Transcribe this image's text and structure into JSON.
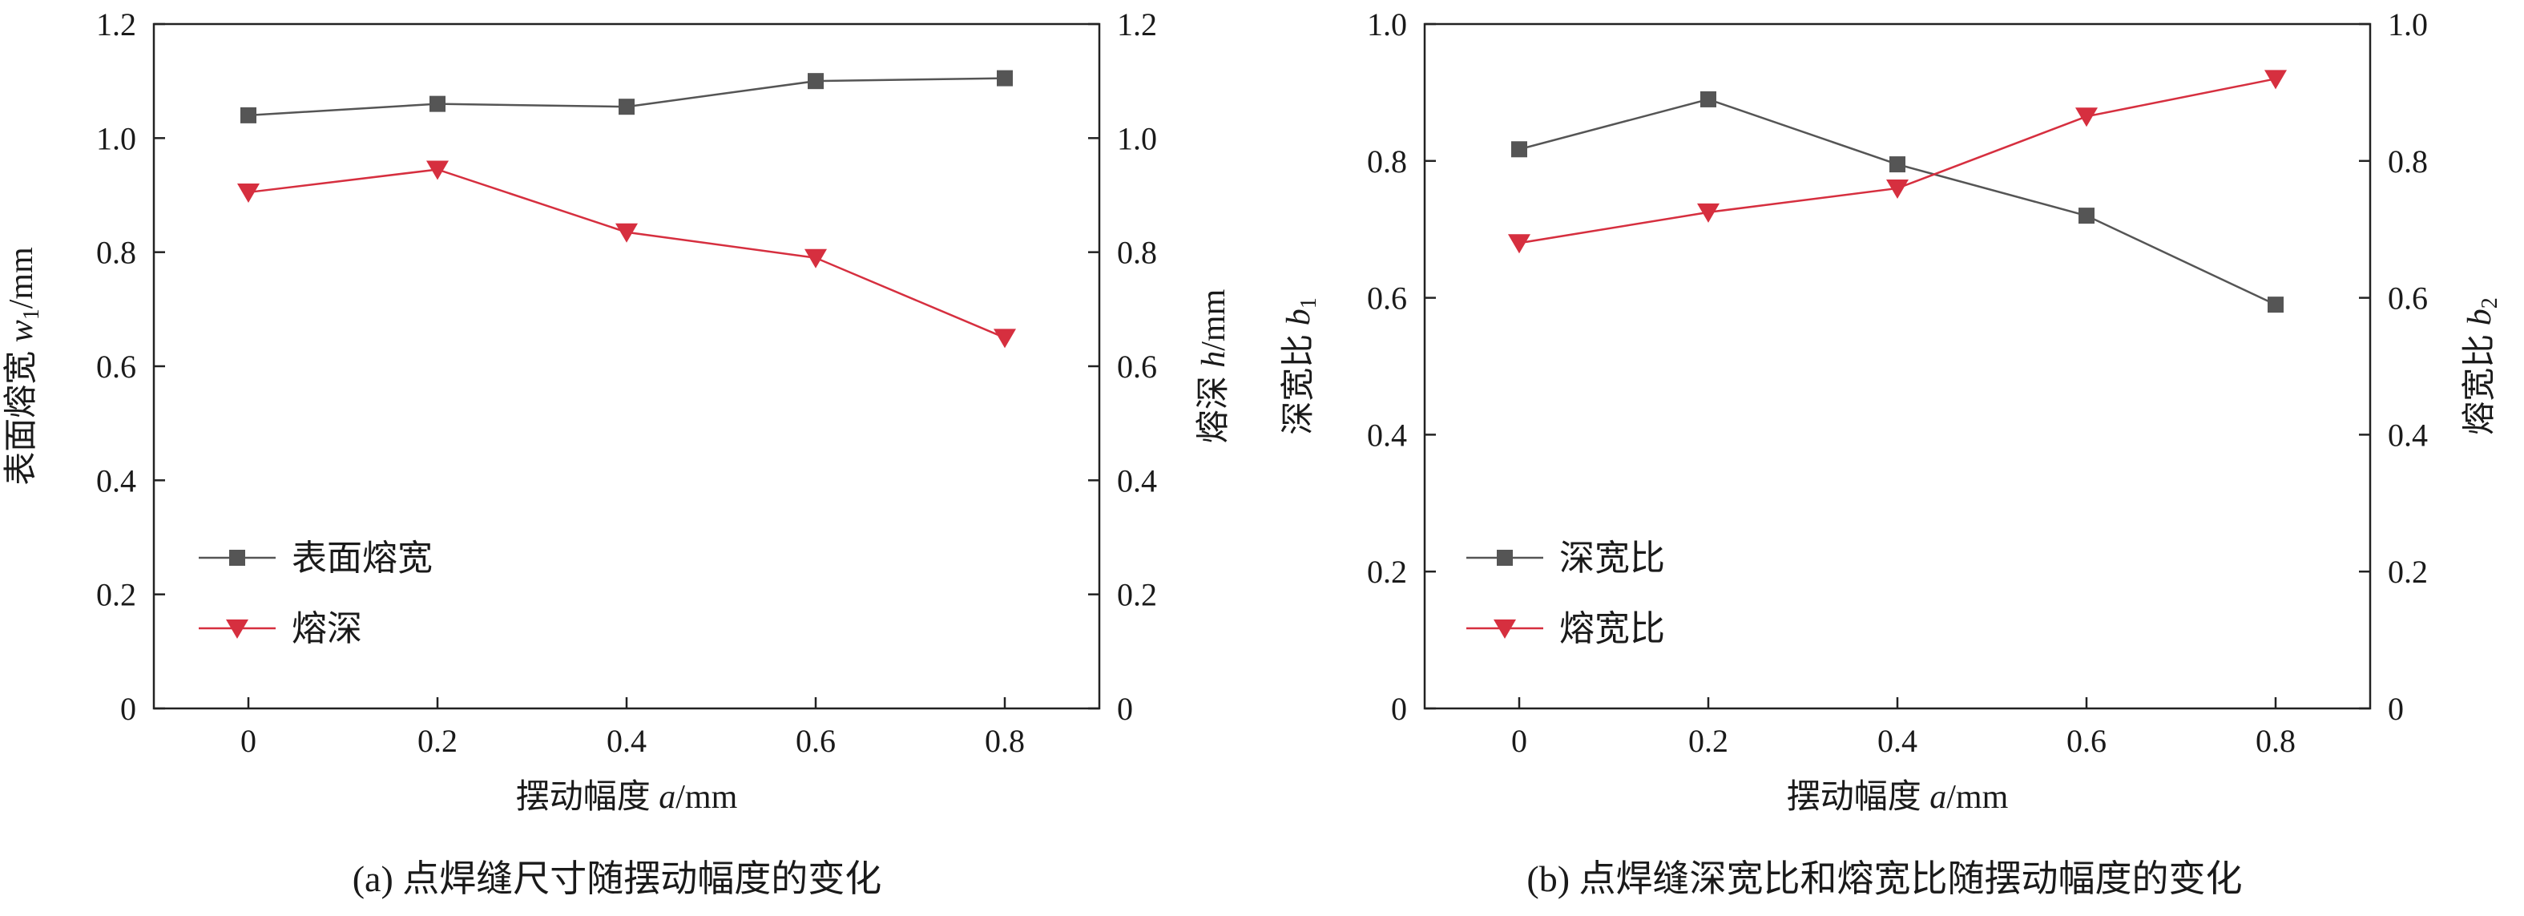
{
  "chart_data": [
    {
      "type": "line",
      "caption": "(a) 点焊缝尺寸随摆动幅度的变化",
      "x": [
        0,
        0.2,
        0.4,
        0.6,
        0.8
      ],
      "x_tick_labels": [
        "0",
        "0.2",
        "0.4",
        "0.6",
        "0.8"
      ],
      "xlim": [
        -0.1,
        0.9
      ],
      "xlabel": {
        "text": "摆动幅度 ",
        "var": "a",
        "unit": "/mm"
      },
      "ylim_left": [
        0,
        1.2
      ],
      "ylim_right": [
        0,
        1.2
      ],
      "y_tick_labels_left": [
        "0",
        "0.2",
        "0.4",
        "0.6",
        "0.8",
        "1.0",
        "1.2"
      ],
      "y_tick_labels_right": [
        "0",
        "0.2",
        "0.4",
        "0.6",
        "0.8",
        "1.0",
        "1.2"
      ],
      "ylabel_left": {
        "text": "表面熔宽 ",
        "var": "w",
        "sub": "1",
        "unit": "/mm"
      },
      "ylabel_right": {
        "text": "熔深 ",
        "var": "h",
        "sub": "",
        "unit": "/mm"
      },
      "grid": false,
      "legend_position": "bottom-left",
      "series": [
        {
          "name": "表面熔宽",
          "axis": "left",
          "marker": "square",
          "color": "#555555",
          "values": [
            1.04,
            1.06,
            1.055,
            1.1,
            1.105
          ]
        },
        {
          "name": "熔深",
          "axis": "right",
          "marker": "triangle-down",
          "color": "#d62f3f",
          "values": [
            0.905,
            0.945,
            0.835,
            0.79,
            0.65
          ]
        }
      ]
    },
    {
      "type": "line",
      "caption": "(b) 点焊缝深宽比和熔宽比随摆动幅度的变化",
      "x": [
        0,
        0.2,
        0.4,
        0.6,
        0.8
      ],
      "x_tick_labels": [
        "0",
        "0.2",
        "0.4",
        "0.6",
        "0.8"
      ],
      "xlim": [
        -0.1,
        0.9
      ],
      "xlabel": {
        "text": "摆动幅度 ",
        "var": "a",
        "unit": "/mm"
      },
      "ylim_left": [
        0,
        1.0
      ],
      "ylim_right": [
        0,
        1.0
      ],
      "y_tick_labels_left": [
        "0",
        "0.2",
        "0.4",
        "0.6",
        "0.8",
        "1.0"
      ],
      "y_tick_labels_right": [
        "0",
        "0.2",
        "0.4",
        "0.6",
        "0.8",
        "1.0"
      ],
      "ylabel_left": {
        "text": "深宽比 ",
        "var": "b",
        "sub": "1",
        "unit": ""
      },
      "ylabel_right": {
        "text": "熔宽比 ",
        "var": "b",
        "sub": "2",
        "unit": ""
      },
      "grid": false,
      "legend_position": "bottom-left",
      "series": [
        {
          "name": "深宽比",
          "axis": "left",
          "marker": "square",
          "color": "#555555",
          "values": [
            0.817,
            0.89,
            0.795,
            0.72,
            0.59
          ]
        },
        {
          "name": "熔宽比",
          "axis": "right",
          "marker": "triangle-down",
          "color": "#d62f3f",
          "values": [
            0.68,
            0.725,
            0.76,
            0.865,
            0.92
          ]
        }
      ]
    }
  ]
}
